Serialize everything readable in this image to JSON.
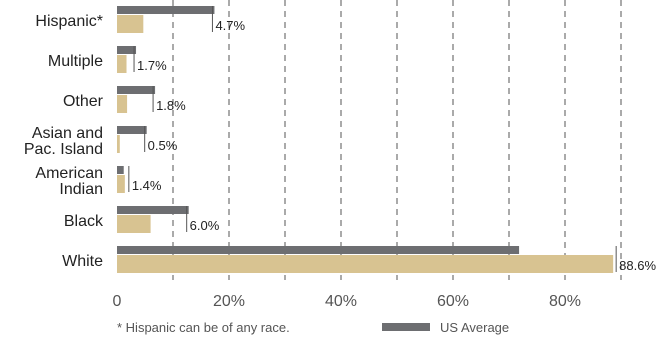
{
  "chart_data": {
    "type": "bar",
    "orientation": "horizontal",
    "categories": [
      "Hispanic*",
      "Multiple",
      "Other",
      "Asian and\nPac. Island",
      "American\nIndian",
      "Black",
      "White"
    ],
    "series": [
      {
        "name": "US Average",
        "color": "#6d6e71",
        "values": [
          17.4,
          3.4,
          6.8,
          5.3,
          1.2,
          12.8,
          71.8
        ]
      },
      {
        "color": "#d8c391",
        "values": [
          4.7,
          1.7,
          1.8,
          0.5,
          1.4,
          6.0,
          88.6
        ]
      }
    ],
    "data_labels": [
      "4.7%",
      "1.7%",
      "1.8%",
      "0.5%",
      "1.4%",
      "6.0%",
      "88.6%"
    ],
    "xticks": [
      "0",
      "20%",
      "40%",
      "60%",
      "80%"
    ],
    "xlim": [
      0,
      90
    ],
    "grid": true,
    "legend_position": "bottom"
  },
  "footnote": "* Hispanic can be of any race."
}
